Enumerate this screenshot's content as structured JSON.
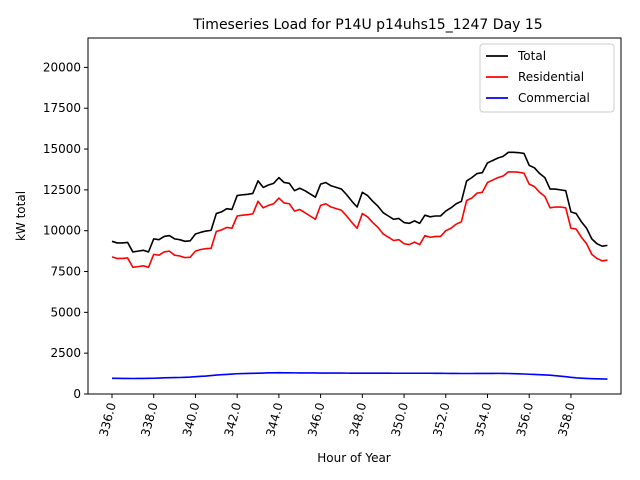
{
  "chart_data": {
    "type": "line",
    "title": "Timeseries Load for P14U p14uhs15_1247  Day 15",
    "xlabel": "Hour of Year",
    "ylabel": "kW total",
    "xlim": [
      334.85,
      360.4
    ],
    "ylim": [
      0,
      21800
    ],
    "xticks": [
      336,
      338,
      340,
      342,
      344,
      346,
      348,
      350,
      352,
      354,
      356,
      358
    ],
    "xtick_labels": [
      "336.0",
      "338.0",
      "340.0",
      "342.0",
      "344.0",
      "346.0",
      "348.0",
      "350.0",
      "352.0",
      "354.0",
      "356.0",
      "358.0"
    ],
    "yticks": [
      0,
      2500,
      5000,
      7500,
      10000,
      12500,
      15000,
      17500,
      20000
    ],
    "ytick_labels": [
      "0",
      "2500",
      "5000",
      "7500",
      "10000",
      "12500",
      "15000",
      "17500",
      "20000"
    ],
    "legend_position": "top-right",
    "x": [
      336.0,
      336.25,
      336.5,
      336.75,
      337.0,
      337.25,
      337.5,
      337.75,
      338.0,
      338.25,
      338.5,
      338.75,
      339.0,
      339.25,
      339.5,
      339.75,
      340.0,
      340.25,
      340.5,
      340.75,
      341.0,
      341.25,
      341.5,
      341.75,
      342.0,
      342.25,
      342.5,
      342.75,
      343.0,
      343.25,
      343.5,
      343.75,
      344.0,
      344.25,
      344.5,
      344.75,
      345.0,
      345.25,
      345.5,
      345.75,
      346.0,
      346.25,
      346.5,
      346.75,
      347.0,
      347.25,
      347.5,
      347.75,
      348.0,
      348.25,
      348.5,
      348.75,
      349.0,
      349.25,
      349.5,
      349.75,
      350.0,
      350.25,
      350.5,
      350.75,
      351.0,
      351.25,
      351.5,
      351.75,
      352.0,
      352.25,
      352.5,
      352.75,
      353.0,
      353.25,
      353.5,
      353.75,
      354.0,
      354.25,
      354.5,
      354.75,
      355.0,
      355.25,
      355.5,
      355.75,
      356.0,
      356.25,
      356.5,
      356.75,
      357.0,
      357.25,
      357.5,
      357.75,
      358.0,
      358.25,
      358.5,
      358.75,
      359.0,
      359.25,
      359.5,
      359.75
    ],
    "series": [
      {
        "name": "Total",
        "color": "#000000",
        "values": [
          9350,
          9250,
          9250,
          9280,
          8700,
          8750,
          8800,
          8700,
          9500,
          9450,
          9650,
          9700,
          9500,
          9450,
          9350,
          9380,
          9800,
          9900,
          9980,
          10020,
          11050,
          11150,
          11350,
          11300,
          12150,
          12200,
          12230,
          12280,
          13050,
          12650,
          12800,
          12900,
          13250,
          12950,
          12900,
          12450,
          12600,
          12450,
          12250,
          12050,
          12850,
          12950,
          12750,
          12650,
          12550,
          12200,
          11800,
          11450,
          12350,
          12150,
          11800,
          11500,
          11100,
          10900,
          10700,
          10750,
          10500,
          10450,
          10600,
          10450,
          10950,
          10850,
          10900,
          10900,
          11200,
          11400,
          11650,
          11800,
          13050,
          13250,
          13500,
          13550,
          14150,
          14300,
          14450,
          14550,
          14800,
          14800,
          14780,
          14730,
          14000,
          13850,
          13500,
          13250,
          12550,
          12550,
          12500,
          12450,
          11150,
          11050,
          10550,
          10150,
          9500,
          9200,
          9050,
          9100
        ]
      },
      {
        "name": "Residential",
        "color": "#ff0000",
        "values": [
          8400,
          8300,
          8300,
          8330,
          7760,
          7800,
          7850,
          7760,
          8550,
          8500,
          8700,
          8750,
          8500,
          8450,
          8350,
          8380,
          8750,
          8850,
          8900,
          8920,
          9950,
          10050,
          10200,
          10150,
          10900,
          10950,
          10980,
          11030,
          11800,
          11400,
          11550,
          11650,
          12000,
          11700,
          11650,
          11200,
          11300,
          11100,
          10900,
          10700,
          11550,
          11650,
          11450,
          11350,
          11250,
          10900,
          10500,
          10150,
          11050,
          10850,
          10500,
          10200,
          9800,
          9600,
          9400,
          9450,
          9200,
          9150,
          9300,
          9150,
          9700,
          9600,
          9650,
          9650,
          10000,
          10150,
          10400,
          10550,
          11850,
          12000,
          12300,
          12350,
          12950,
          13100,
          13250,
          13350,
          13600,
          13600,
          13580,
          13520,
          12850,
          12700,
          12350,
          12100,
          11400,
          11450,
          11450,
          11400,
          10150,
          10100,
          9600,
          9200,
          8550,
          8300,
          8150,
          8200
        ]
      },
      {
        "name": "Commercial",
        "color": "#0000ff",
        "values": [
          960,
          958,
          955,
          953,
          950,
          952,
          955,
          958,
          965,
          975,
          990,
          1000,
          1005,
          1010,
          1020,
          1035,
          1060,
          1080,
          1100,
          1130,
          1160,
          1180,
          1200,
          1220,
          1240,
          1250,
          1260,
          1265,
          1275,
          1285,
          1295,
          1300,
          1305,
          1300,
          1295,
          1293,
          1290,
          1290,
          1290,
          1288,
          1285,
          1285,
          1283,
          1282,
          1280,
          1278,
          1276,
          1275,
          1275,
          1275,
          1274,
          1273,
          1272,
          1272,
          1271,
          1270,
          1270,
          1270,
          1270,
          1270,
          1270,
          1270,
          1268,
          1266,
          1263,
          1260,
          1258,
          1256,
          1256,
          1256,
          1257,
          1258,
          1260,
          1262,
          1263,
          1262,
          1255,
          1245,
          1235,
          1225,
          1210,
          1200,
          1185,
          1170,
          1150,
          1120,
          1090,
          1060,
          1020,
          990,
          970,
          955,
          940,
          930,
          920,
          915
        ]
      }
    ]
  }
}
